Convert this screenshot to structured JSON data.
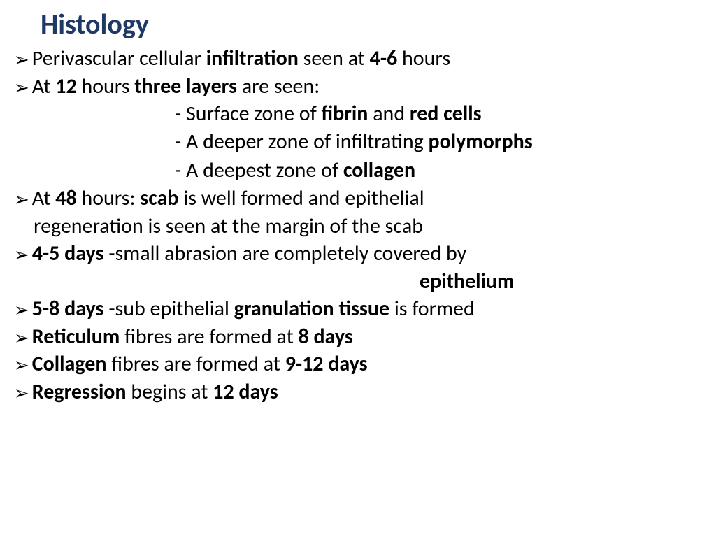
{
  "title": "Histology",
  "colors": {
    "title_color": "#1f3864",
    "text_color": "#000000",
    "background": "#ffffff"
  },
  "typography": {
    "title_fontsize": 40,
    "body_fontsize": 30,
    "font_family": "Calibri"
  },
  "bullets": [
    {
      "html": "Perivascular cellular <b>infiltration</b> seen at <b>4-6</b> hours"
    },
    {
      "html": "At <b>12</b> hours <b>three layers</b> are seen:",
      "subs": [
        "- Surface zone of <b>fibrin</b> and <b>red cells</b>",
        "- A deeper zone of infiltrating <b>polymorphs</b>",
        "- A deepest zone of <b>collagen</b>"
      ]
    },
    {
      "html": "At <b>48</b> hours: <b>scab</b> is well formed and epithelial",
      "cont": "regeneration is seen at the margin of the scab"
    },
    {
      "html": "<b>4-5 days</b> -small abrasion are completely covered by",
      "right": "epithelium"
    },
    {
      "html": "<b>5-8 days</b> -sub epithelial <b>granulation tissue</b> is formed"
    },
    {
      "html": "<b>Reticulum</b> fibres are formed at <b>8 days</b>"
    },
    {
      "html": "<b>Collagen</b> fibres are formed at <b>9-12 days</b>"
    },
    {
      "html": "<b>Regression</b> begins at <b>12 days</b>"
    }
  ]
}
